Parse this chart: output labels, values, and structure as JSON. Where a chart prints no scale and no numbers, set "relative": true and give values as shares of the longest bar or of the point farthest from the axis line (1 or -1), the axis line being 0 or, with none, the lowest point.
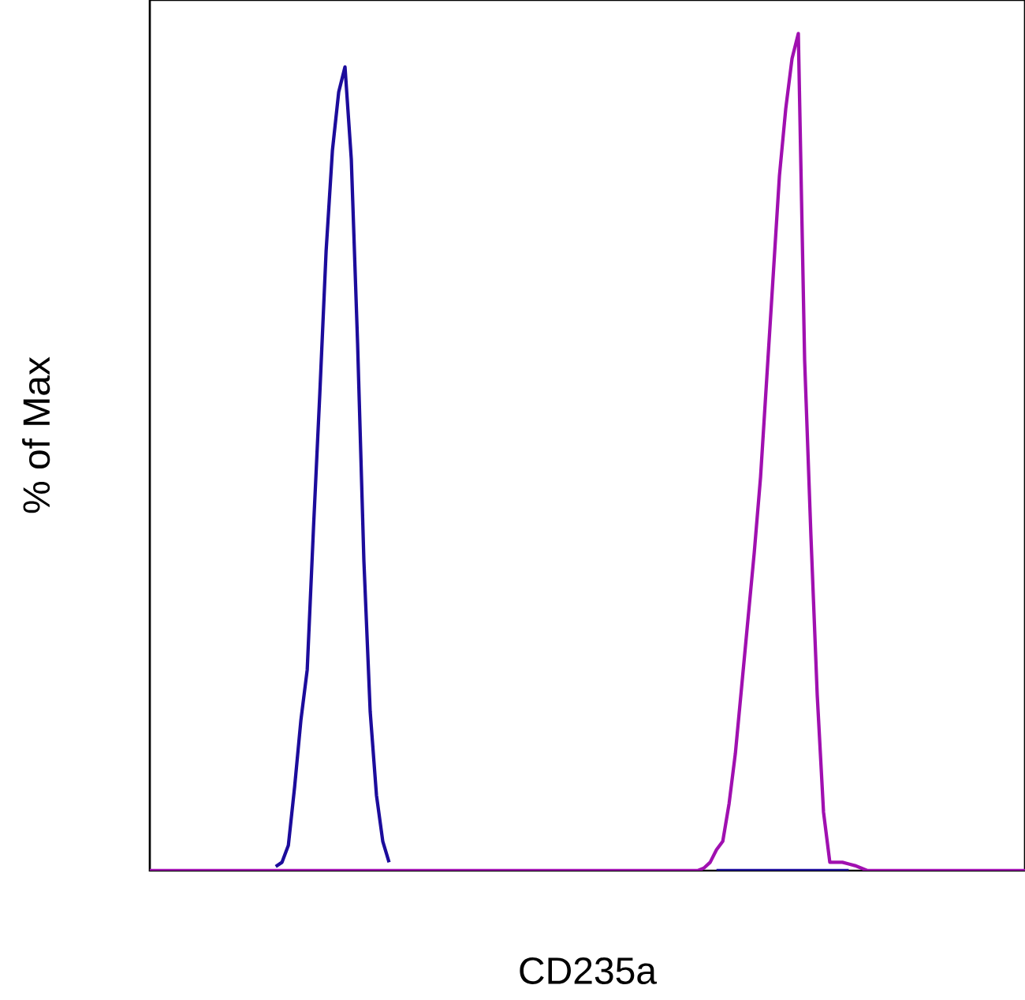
{
  "chart_data": {
    "type": "line",
    "relative": true,
    "xlabel": "CD235a",
    "ylabel": "% of Max",
    "marker": "none",
    "line_style": "solid",
    "categories": [
      null,
      null,
      null,
      null,
      null,
      null,
      null,
      null,
      null,
      null,
      null,
      null,
      null,
      null,
      null,
      null,
      null,
      null,
      null,
      null,
      null,
      null,
      null,
      null,
      null,
      null,
      null,
      null,
      null,
      null,
      null,
      null,
      null,
      null,
      null,
      null,
      null,
      null,
      null,
      null,
      null,
      null,
      null,
      null,
      null,
      null,
      null,
      null,
      null,
      null,
      null,
      null,
      null,
      null,
      null,
      null,
      null,
      null,
      null,
      null,
      null,
      null,
      null,
      null,
      null,
      null,
      null,
      null,
      null,
      null,
      null,
      null,
      null,
      null,
      null,
      null,
      null,
      null,
      null,
      null,
      null,
      null,
      null,
      null,
      null,
      null,
      null,
      null,
      null,
      null,
      null,
      null,
      null,
      null,
      null,
      null,
      null,
      null,
      null,
      null,
      null,
      null,
      null,
      null,
      null,
      null,
      null,
      null,
      null,
      null,
      null,
      null,
      null,
      null,
      null,
      null,
      null,
      null,
      null,
      null,
      null,
      null,
      null,
      null,
      null,
      null,
      null,
      null,
      null,
      null,
      null,
      null,
      null,
      null,
      null,
      null,
      null,
      null,
      null,
      null
    ],
    "series": [
      {
        "color": "#a010b0",
        "values": [
          0,
          0,
          0,
          0,
          0,
          0,
          0,
          0,
          0,
          0,
          0,
          0,
          0,
          0,
          0,
          0,
          0,
          0,
          0,
          0,
          0,
          0,
          0,
          0,
          0,
          0,
          0,
          0,
          0,
          0,
          0,
          0,
          0,
          0,
          0,
          0,
          0,
          0,
          0,
          0,
          0,
          0,
          0,
          0,
          0,
          0,
          0,
          0,
          0,
          0,
          0,
          0,
          0,
          0,
          0,
          0,
          0,
          0,
          0,
          0,
          0,
          0,
          0,
          0,
          0,
          0,
          0,
          0,
          0,
          0,
          0,
          0,
          0,
          0,
          0,
          0,
          0,
          0,
          0,
          0,
          0,
          0,
          0,
          0,
          0,
          0,
          0,
          0,
          0.003,
          0.01,
          0.025,
          0.035,
          0.08,
          0.14,
          0.22,
          0.3,
          0.38,
          0.47,
          0.59,
          0.71,
          0.83,
          0.91,
          0.97,
          1,
          0.61,
          0.4,
          0.21,
          0.07,
          0.01,
          0.01,
          0.01,
          0.008,
          0.006,
          0.003,
          0,
          0,
          0,
          0,
          0,
          0,
          0,
          0,
          0,
          0,
          0,
          0,
          0,
          0,
          0,
          0,
          0,
          0,
          0,
          0,
          0,
          0,
          0,
          0,
          0,
          0
        ]
      },
      {
        "color": "#1c0c9c",
        "values": [
          null,
          null,
          null,
          null,
          null,
          null,
          null,
          null,
          null,
          null,
          null,
          null,
          null,
          null,
          null,
          null,
          null,
          null,
          null,
          null,
          0.005,
          0.01,
          0.03,
          0.1,
          0.18,
          0.24,
          0.41,
          0.57,
          0.74,
          0.86,
          0.93,
          0.96,
          0.85,
          0.63,
          0.37,
          0.19,
          0.09,
          0.035,
          0.01,
          null,
          null,
          null,
          null,
          null,
          null,
          null,
          null,
          null,
          null,
          null,
          null,
          null,
          null,
          null,
          null,
          null,
          null,
          null,
          null,
          null,
          null,
          null,
          null,
          null,
          null,
          null,
          null,
          null,
          null,
          null,
          null,
          null,
          null,
          null,
          null,
          null,
          null,
          null,
          null,
          null,
          null,
          null,
          null,
          null,
          null,
          null,
          null,
          null,
          null,
          null,
          0,
          0,
          0,
          0,
          0,
          0,
          0,
          0,
          0,
          0,
          0,
          0,
          0,
          0,
          0,
          0,
          0,
          0,
          0,
          0,
          0,
          0,
          null,
          null,
          null,
          null,
          null,
          null,
          null,
          null,
          null,
          null,
          null,
          null,
          null,
          null,
          null,
          null,
          null,
          null,
          null,
          null,
          null,
          null,
          null,
          null,
          null,
          null,
          null,
          null
        ]
      }
    ]
  }
}
